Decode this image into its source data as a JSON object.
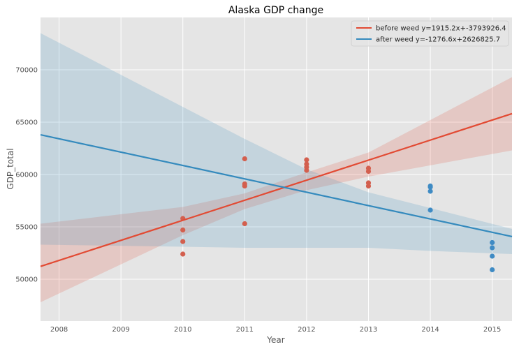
{
  "chart_data": {
    "type": "scatter",
    "title": "Alaska GDP change",
    "xlabel": "Year",
    "ylabel": "GDP_total",
    "xlim": [
      2007.7,
      2015.32
    ],
    "ylim": [
      46000,
      75000
    ],
    "xticks": [
      2008,
      2009,
      2010,
      2011,
      2012,
      2013,
      2014,
      2015
    ],
    "yticks": [
      50000,
      55000,
      60000,
      65000,
      70000
    ],
    "grid": true,
    "legend_position": "top-right",
    "colors": {
      "before": "#E24A33",
      "after": "#348ABD",
      "before_points": "#D35F4E",
      "after_points": "#3F8BC4",
      "plot_bg": "#E5E5E5",
      "grid": "#FFFFFF"
    },
    "series": [
      {
        "name": "before weed y=1915.2x+-3793926.4",
        "color": "#E24A33",
        "slope": 1915.2,
        "intercept": -3793926.4,
        "points": [
          {
            "x": 2010,
            "y": 55800
          },
          {
            "x": 2010,
            "y": 54700
          },
          {
            "x": 2010,
            "y": 53600
          },
          {
            "x": 2010,
            "y": 52400
          },
          {
            "x": 2011,
            "y": 61500
          },
          {
            "x": 2011,
            "y": 59100
          },
          {
            "x": 2011,
            "y": 58900
          },
          {
            "x": 2011,
            "y": 55300
          },
          {
            "x": 2012,
            "y": 61400
          },
          {
            "x": 2012,
            "y": 61000
          },
          {
            "x": 2012,
            "y": 60700
          },
          {
            "x": 2012,
            "y": 60400
          },
          {
            "x": 2013,
            "y": 60600
          },
          {
            "x": 2013,
            "y": 60300
          },
          {
            "x": 2013,
            "y": 59200
          },
          {
            "x": 2013,
            "y": 58900
          }
        ],
        "band_upper": [
          {
            "x": 2007.7,
            "y": 55300
          },
          {
            "x": 2010,
            "y": 56900
          },
          {
            "x": 2011,
            "y": 58200
          },
          {
            "x": 2012,
            "y": 60200
          },
          {
            "x": 2013,
            "y": 62100
          },
          {
            "x": 2015.32,
            "y": 69300
          }
        ],
        "band_lower": [
          {
            "x": 2007.7,
            "y": 47800
          },
          {
            "x": 2010,
            "y": 54200
          },
          {
            "x": 2011,
            "y": 56700
          },
          {
            "x": 2012,
            "y": 58500
          },
          {
            "x": 2013,
            "y": 59800
          },
          {
            "x": 2015.32,
            "y": 62300
          }
        ]
      },
      {
        "name": "after weed y=-1276.6x+2626825.7",
        "color": "#348ABD",
        "slope": -1276.6,
        "intercept": 2626825.7,
        "points": [
          {
            "x": 2014,
            "y": 58900
          },
          {
            "x": 2014,
            "y": 58800
          },
          {
            "x": 2014,
            "y": 58400
          },
          {
            "x": 2014,
            "y": 56600
          },
          {
            "x": 2015,
            "y": 53500
          },
          {
            "x": 2015,
            "y": 53000
          },
          {
            "x": 2015,
            "y": 52200
          },
          {
            "x": 2015,
            "y": 50900
          }
        ],
        "band_upper": [
          {
            "x": 2007.7,
            "y": 73500
          },
          {
            "x": 2011,
            "y": 63400
          },
          {
            "x": 2012,
            "y": 60500
          },
          {
            "x": 2013,
            "y": 58300
          },
          {
            "x": 2014,
            "y": 56800
          },
          {
            "x": 2015.32,
            "y": 54800
          }
        ],
        "band_lower": [
          {
            "x": 2007.7,
            "y": 53300
          },
          {
            "x": 2010,
            "y": 53100
          },
          {
            "x": 2011,
            "y": 53000
          },
          {
            "x": 2012,
            "y": 53000
          },
          {
            "x": 2013,
            "y": 53000
          },
          {
            "x": 2014,
            "y": 52700
          },
          {
            "x": 2015.32,
            "y": 52400
          }
        ]
      }
    ]
  }
}
